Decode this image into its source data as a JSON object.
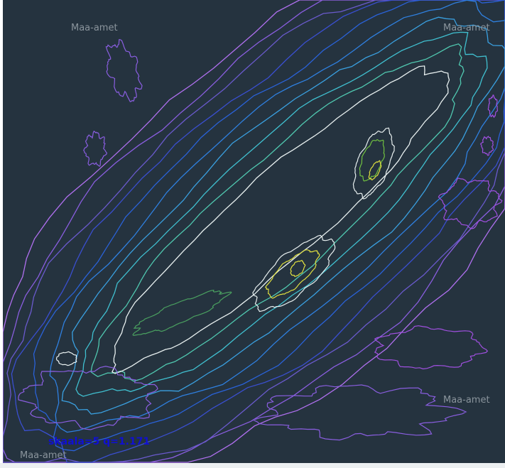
{
  "watermarks": [
    "Maa-amet",
    "Maa-amet",
    "Maa-amet",
    "Maa-amet"
  ],
  "scale_label": "skaala=5 q=1.171",
  "colors": {
    "background": "#25333f",
    "scale_text": "#1010d0",
    "contour_levels": [
      "#b070f0",
      "#8a5ee0",
      "#6a5acd",
      "#3a4fd0",
      "#2a62d8",
      "#2f80e0",
      "#3aa0e0",
      "#40c0d0",
      "#50c8b0",
      "#e8f0f0",
      "#4aa060",
      "#70c040",
      "#e0e040"
    ]
  }
}
